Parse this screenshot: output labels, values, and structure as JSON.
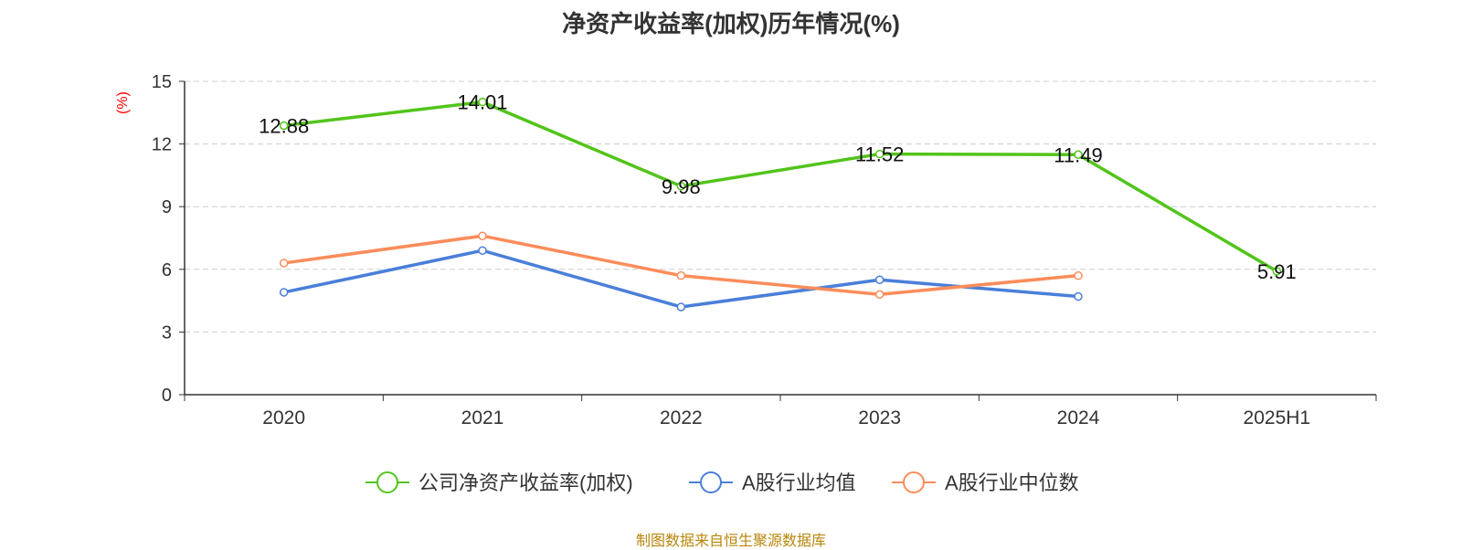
{
  "chart_data": {
    "type": "line",
    "title": "净资产收益率(加权)历年情况(%)",
    "ylabel": "(%)",
    "xlabel": "",
    "categories": [
      "2020",
      "2021",
      "2022",
      "2023",
      "2024",
      "2025H1"
    ],
    "ylim": [
      0,
      15
    ],
    "yticks": [
      0,
      3,
      6,
      9,
      12,
      15
    ],
    "grid": true,
    "legend_position": "bottom",
    "series": [
      {
        "name": "公司净资产收益率(加权)",
        "color": "#52c41a",
        "values": [
          12.88,
          14.01,
          9.98,
          11.52,
          11.49,
          5.91
        ],
        "data_labels": [
          "12.88",
          "14.01",
          "9.98",
          "11.52",
          "11.49",
          "5.91"
        ]
      },
      {
        "name": "A股行业均值",
        "color": "#4a7fd9",
        "values": [
          4.9,
          6.9,
          4.2,
          5.5,
          4.7,
          null
        ]
      },
      {
        "name": "A股行业中位数",
        "color": "#fc8c5a",
        "values": [
          6.3,
          7.6,
          5.7,
          4.8,
          5.7,
          null
        ]
      }
    ]
  },
  "source": "制图数据来自恒生聚源数据库"
}
